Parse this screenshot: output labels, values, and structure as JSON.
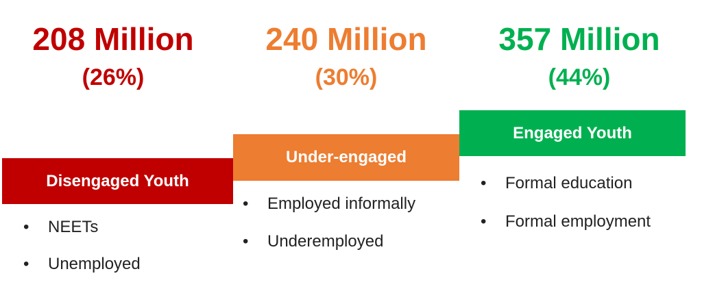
{
  "columns": [
    {
      "figure": "208 Million",
      "share": "(26%)",
      "label": "Disengaged Youth",
      "color": "#c00000",
      "bullets": [
        "NEETs",
        "Unemployed"
      ]
    },
    {
      "figure": "240 Million",
      "share": "(30%)",
      "label": "Under-engaged",
      "color": "#ed7d31",
      "bullets": [
        "Employed informally",
        "Underemployed"
      ]
    },
    {
      "figure": "357 Million",
      "share": "(44%)",
      "label": "Engaged Youth",
      "color": "#00b050",
      "bullets": [
        "Formal education",
        "Formal employment"
      ]
    }
  ]
}
